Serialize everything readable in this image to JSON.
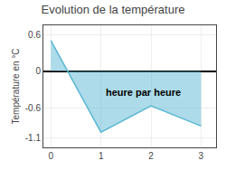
{
  "chart_data": {
    "type": "area",
    "title": "Evolution de la température",
    "y_label": "Température en °C",
    "x": [
      0,
      1,
      2,
      3
    ],
    "values": [
      0.5,
      -1.0,
      -0.57,
      -0.9
    ],
    "color": "#5bb8d4",
    "xlim": [
      -0.15,
      3.3
    ],
    "ylim": [
      -1.25,
      0.75
    ],
    "xticks": [
      0,
      1,
      2,
      3
    ],
    "yticks": [
      -1.1,
      -0.6,
      0.0,
      0.6
    ],
    "grid": true,
    "annotations": [
      {
        "text": "heure par heure",
        "x": 1.85,
        "y": -0.35
      }
    ]
  }
}
